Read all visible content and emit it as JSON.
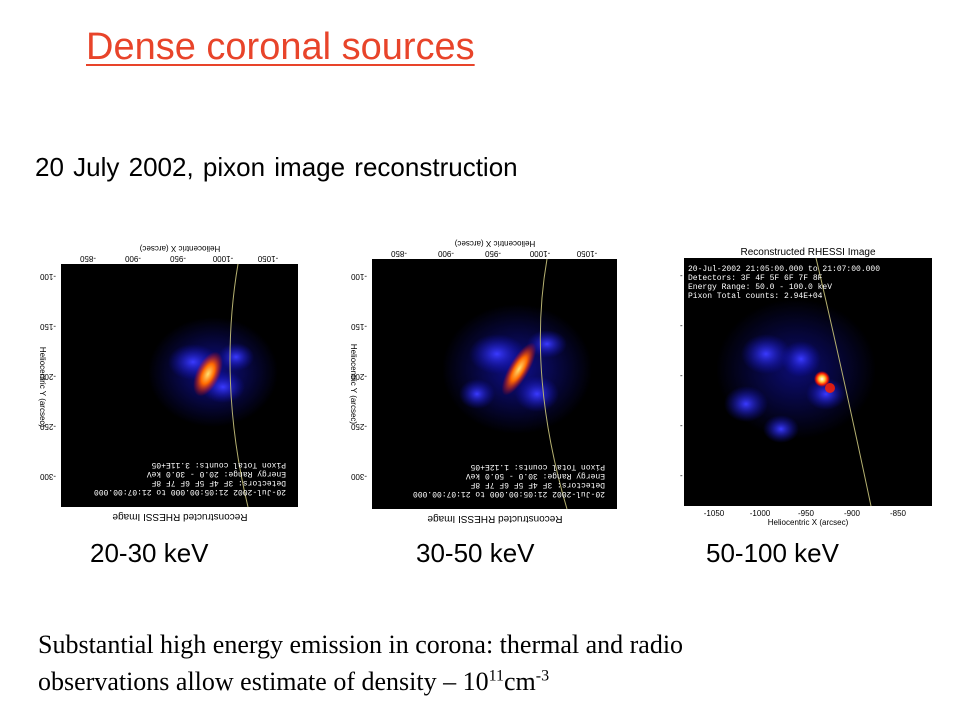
{
  "slide": {
    "title": "Dense coronal sources",
    "subtitle": "20 July 2002, pixon image reconstruction",
    "body_line1": "Substantial high energy emission in corona: thermal and radio",
    "body_line2_prefix": "observations allow estimate of density – 10",
    "body_exp1": "11",
    "body_unit": "cm",
    "body_exp2": "-3"
  },
  "colors": {
    "title": "#e8442a",
    "image_bg": "#000000",
    "hot": "#ffd040",
    "cool": "#1a1aff"
  },
  "panels": [
    {
      "energy_label": "20-30 keV",
      "mirrored": true,
      "plot_title": "Reconstructed RHESSI Image",
      "xlabel": "Heliocentric X (arcsec)",
      "ylabel": "Heliocentric Y (arcsec)",
      "xticks": [
        "-1050",
        "-1000",
        "-950",
        "-900",
        "-850"
      ],
      "yticks": [
        "-300",
        "-250",
        "-200",
        "-150",
        "-100"
      ],
      "info": [
        "20-Jul-2002 21:05:00.000 to 21:07:00.000",
        "Detectors: 3F 4F 5F 6F 7F 8F",
        "Energy Range: 20.0 - 30.0 keV",
        "Pixon    Total counts: 3.11E+05"
      ]
    },
    {
      "energy_label": "30-50 keV",
      "mirrored": true,
      "plot_title": "Reconstructed RHESSI Image",
      "xlabel": "Heliocentric X (arcsec)",
      "ylabel": "Heliocentric Y (arcsec)",
      "xticks": [
        "-1050",
        "-1000",
        "-950",
        "-900",
        "-850"
      ],
      "yticks": [
        "-300",
        "-250",
        "-200",
        "-150",
        "-100"
      ],
      "info": [
        "20-Jul-2002 21:05:00.000 to 21:07:00.000",
        "Detectors: 3F 4F 5F 6F 7F 8F",
        "Energy Range: 30.0 - 50.0 keV",
        "Pixon    Total counts: 1.12E+05"
      ]
    },
    {
      "energy_label": "50-100 keV",
      "mirrored": false,
      "plot_title": "Reconstructed RHESSI Image",
      "xlabel": "Heliocentric X (arcsec)",
      "ylabel": "",
      "xticks": [
        "-1050",
        "-1000",
        "-950",
        "-900",
        "-850"
      ],
      "yticks": [],
      "info": [
        "20-Jul-2002 21:05:00.000 to 21:07:00.000",
        "Detectors: 3F 4F 5F 6F 7F 8F",
        "Energy Range: 50.0 - 100.0 keV",
        "Pixon    Total counts: 2.94E+04"
      ]
    }
  ]
}
